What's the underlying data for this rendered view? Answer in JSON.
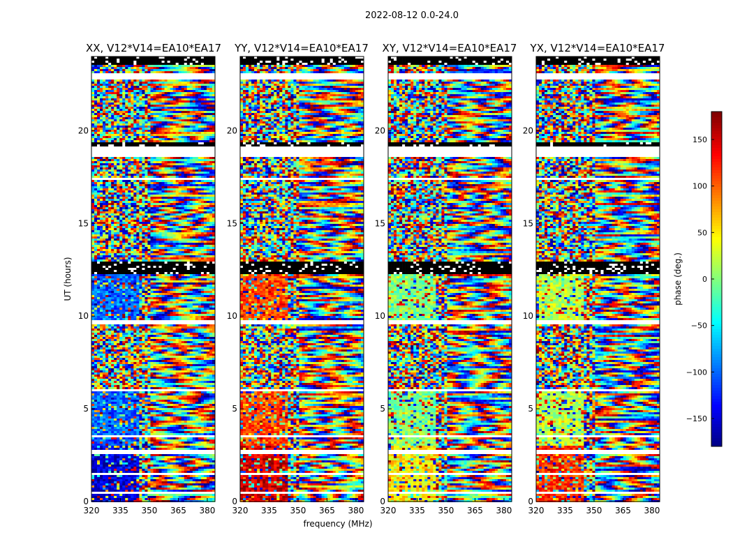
{
  "figure": {
    "suptitle": "2022-08-12 0.0-24.0"
  },
  "chart_data": {
    "type": "heatmap",
    "x_label": "frequency (MHz)",
    "y_label": "UT (hours)",
    "x_range": [
      320,
      384
    ],
    "y_range": [
      0,
      24
    ],
    "x_ticks": [
      320,
      335,
      350,
      365,
      380
    ],
    "y_ticks": [
      0,
      5,
      10,
      15,
      20
    ],
    "panels": [
      {
        "title": "XX, V12*V14=EA10*EA17",
        "low_band_phase": -150,
        "mid_band_phase": -100
      },
      {
        "title": "YY, V12*V14=EA10*EA17",
        "low_band_phase": 150,
        "mid_band_phase": 110
      },
      {
        "title": "XY, V12*V14=EA10*EA17",
        "low_band_phase": 50,
        "mid_band_phase": 0
      },
      {
        "title": "YX, V12*V14=EA10*EA17",
        "low_band_phase": 120,
        "mid_band_phase": 20
      }
    ],
    "colorbar": {
      "label": "phase (deg.)",
      "range": [
        -180,
        180
      ],
      "ticks": [
        150,
        100,
        50,
        0,
        -50,
        -100,
        -150
      ],
      "tick_labels": [
        "150",
        "100",
        "50",
        "0",
        "−50",
        "−100",
        "−150"
      ],
      "cmap": "jet"
    },
    "gaps_hours": [
      [
        0.4,
        0.55
      ],
      [
        1.4,
        1.55
      ],
      [
        2.6,
        2.8
      ],
      [
        3.5,
        3.6
      ],
      [
        5.9,
        6.1
      ],
      [
        9.55,
        9.75
      ],
      [
        12.3,
        12.5
      ],
      [
        12.55,
        12.9
      ],
      [
        17.3,
        17.45
      ],
      [
        18.6,
        19.2
      ],
      [
        22.8,
        23.1
      ],
      [
        23.5,
        24.0
      ]
    ],
    "flagged_bands_hours": [
      [
        12.3,
        12.9
      ],
      [
        23.5,
        24.0
      ],
      [
        19.2,
        19.35
      ]
    ]
  }
}
